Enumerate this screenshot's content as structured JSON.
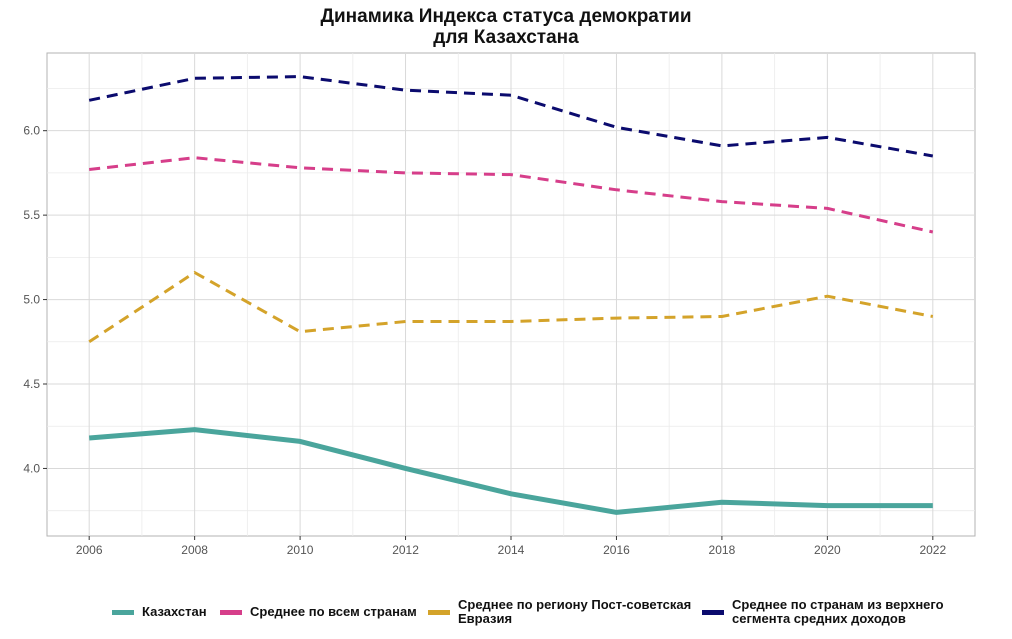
{
  "chart_data": {
    "type": "line",
    "title": "Динамика Индекса статуса демократии",
    "subtitle": "для Казахстана",
    "xlabel": "",
    "ylabel": "",
    "x": [
      2006,
      2008,
      2010,
      2012,
      2014,
      2016,
      2018,
      2020,
      2022
    ],
    "xlim": [
      2005.2,
      2022.8
    ],
    "ylim": [
      3.6,
      6.46
    ],
    "x_ticks": [
      "2006",
      "2008",
      "2010",
      "2012",
      "2014",
      "2016",
      "2018",
      "2020",
      "2022"
    ],
    "y_ticks": [
      "4.0",
      "4.5",
      "5.0",
      "5.5",
      "6.0"
    ],
    "grid": true,
    "legend_position": "bottom",
    "series": [
      {
        "name": "Казахстан",
        "color": "#4aa59c",
        "style": "solid",
        "values": [
          4.18,
          4.23,
          4.16,
          4.0,
          3.85,
          3.74,
          3.8,
          3.78,
          3.78
        ]
      },
      {
        "name": "Среднее по всем странам",
        "color": "#d63e8a",
        "style": "dashed",
        "values": [
          5.77,
          5.84,
          5.78,
          5.75,
          5.74,
          5.65,
          5.58,
          5.54,
          5.4
        ]
      },
      {
        "name": "Среднее по региону Пост-советская Евразия",
        "color": "#d4a32a",
        "style": "dashed",
        "values": [
          4.75,
          5.16,
          4.81,
          4.87,
          4.87,
          4.89,
          4.9,
          5.02,
          4.9
        ]
      },
      {
        "name": "Среднее по странам из верхнего сегмента средних доходов",
        "color": "#0b0b6e",
        "style": "dashed",
        "values": [
          6.18,
          6.31,
          6.32,
          6.24,
          6.21,
          6.02,
          5.91,
          5.96,
          5.85
        ]
      }
    ]
  }
}
